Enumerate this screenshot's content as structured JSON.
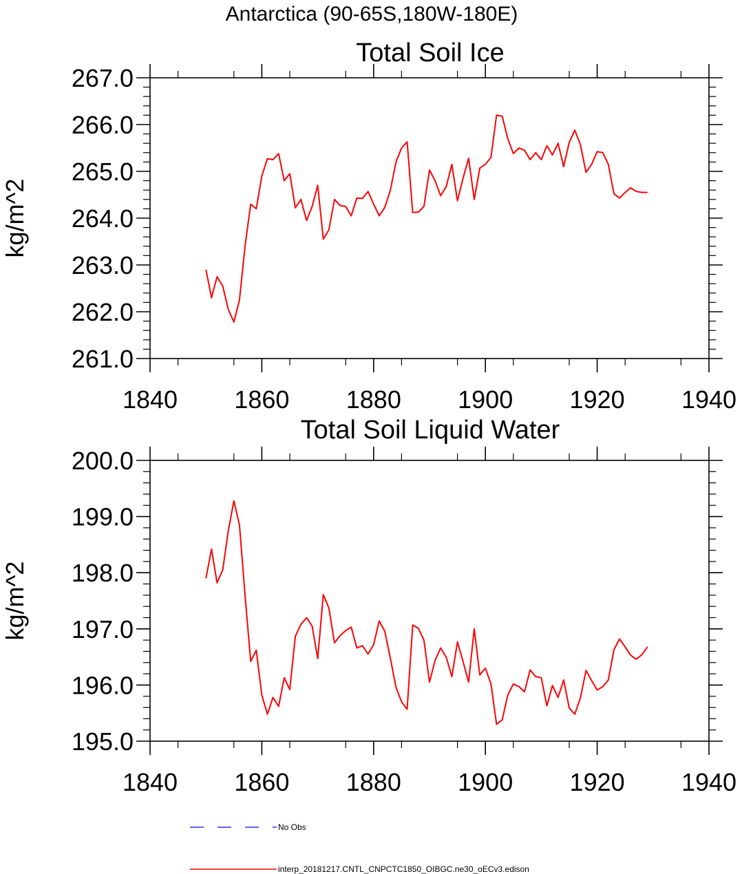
{
  "figure_title": "Antarctica (90-65S,180W-180E)",
  "legend": {
    "entries": [
      {
        "label": "No Obs",
        "color": "#0000ff",
        "style": "dashed"
      },
      {
        "label": "interp_20181217.CNTL_CNPCTC1850_OIBGC.ne30_oECv3.edison",
        "color": "#ff0000",
        "style": "solid"
      }
    ]
  },
  "chart_data": [
    {
      "type": "line",
      "title": "Total Soil Ice",
      "xlabel": "",
      "ylabel": "kg/m^2",
      "xlim": [
        1840,
        1940
      ],
      "ylim": [
        261.0,
        267.0
      ],
      "xticks": [
        "1840",
        "1860",
        "1880",
        "1900",
        "1920",
        "1940"
      ],
      "yticks": [
        "261.0",
        "262.0",
        "263.0",
        "264.0",
        "265.0",
        "266.0",
        "267.0"
      ],
      "grid": false,
      "series": [
        {
          "color": "#ff0000",
          "x": [
            1850,
            1851,
            1852,
            1853,
            1854,
            1855,
            1856,
            1857,
            1858,
            1859,
            1860,
            1861,
            1862,
            1863,
            1864,
            1865,
            1866,
            1867,
            1868,
            1869,
            1870,
            1871,
            1872,
            1873,
            1874,
            1875,
            1876,
            1877,
            1878,
            1879,
            1880,
            1881,
            1882,
            1883,
            1884,
            1885,
            1886,
            1887,
            1888,
            1889,
            1890,
            1891,
            1892,
            1893,
            1894,
            1895,
            1896,
            1897,
            1898,
            1899,
            1900,
            1901,
            1902,
            1903,
            1904,
            1905,
            1906,
            1907,
            1908,
            1909,
            1910,
            1911,
            1912,
            1913,
            1914,
            1915,
            1916,
            1917,
            1918,
            1919,
            1920,
            1921,
            1922,
            1923,
            1924,
            1925,
            1926,
            1927,
            1928,
            1929
          ],
          "values": [
            262.9,
            262.3,
            262.75,
            262.55,
            262.05,
            261.78,
            262.25,
            263.4,
            264.3,
            264.2,
            264.9,
            265.27,
            265.25,
            265.38,
            264.8,
            264.95,
            264.22,
            264.4,
            263.95,
            264.25,
            264.7,
            263.55,
            263.75,
            264.4,
            264.27,
            264.25,
            264.05,
            264.43,
            264.42,
            264.57,
            264.3,
            264.05,
            264.23,
            264.6,
            265.2,
            265.5,
            265.63,
            264.12,
            264.13,
            264.25,
            265.03,
            264.8,
            264.48,
            264.68,
            265.15,
            264.37,
            264.85,
            265.28,
            264.4,
            265.07,
            265.15,
            265.3,
            266.2,
            266.18,
            265.7,
            265.38,
            265.5,
            265.45,
            265.25,
            265.4,
            265.25,
            265.55,
            265.35,
            265.6,
            265.1,
            265.62,
            265.88,
            265.57,
            264.98,
            265.15,
            265.42,
            265.4,
            265.15,
            264.52,
            264.43,
            264.55,
            264.65,
            264.57,
            264.55,
            264.55
          ]
        }
      ]
    },
    {
      "type": "line",
      "title": "Total Soil Liquid Water",
      "xlabel": "",
      "ylabel": "kg/m^2",
      "xlim": [
        1840,
        1940
      ],
      "ylim": [
        195.0,
        200.0
      ],
      "xticks": [
        "1840",
        "1860",
        "1880",
        "1900",
        "1920",
        "1940"
      ],
      "yticks": [
        "195.0",
        "196.0",
        "197.0",
        "198.0",
        "199.0",
        "200.0"
      ],
      "grid": false,
      "series": [
        {
          "color": "#ff0000",
          "x": [
            1850,
            1851,
            1852,
            1853,
            1854,
            1855,
            1856,
            1857,
            1858,
            1859,
            1860,
            1861,
            1862,
            1863,
            1864,
            1865,
            1866,
            1867,
            1868,
            1869,
            1870,
            1871,
            1872,
            1873,
            1874,
            1875,
            1876,
            1877,
            1878,
            1879,
            1880,
            1881,
            1882,
            1883,
            1884,
            1885,
            1886,
            1887,
            1888,
            1889,
            1890,
            1891,
            1892,
            1893,
            1894,
            1895,
            1896,
            1897,
            1898,
            1899,
            1900,
            1901,
            1902,
            1903,
            1904,
            1905,
            1906,
            1907,
            1908,
            1909,
            1910,
            1911,
            1912,
            1913,
            1914,
            1915,
            1916,
            1917,
            1918,
            1919,
            1920,
            1921,
            1922,
            1923,
            1924,
            1925,
            1926,
            1927,
            1928,
            1929
          ],
          "values": [
            197.9,
            198.42,
            197.82,
            198.05,
            198.75,
            199.28,
            198.85,
            197.6,
            196.42,
            196.62,
            195.82,
            195.48,
            195.78,
            195.62,
            196.13,
            195.92,
            196.87,
            197.08,
            197.2,
            197.05,
            196.47,
            197.61,
            197.37,
            196.75,
            196.88,
            196.97,
            197.03,
            196.66,
            196.7,
            196.55,
            196.72,
            197.14,
            196.96,
            196.47,
            195.96,
            195.7,
            195.57,
            197.07,
            197.01,
            196.8,
            196.05,
            196.44,
            196.66,
            196.49,
            196.15,
            196.77,
            196.42,
            196.05,
            197.0,
            196.18,
            196.3,
            196.02,
            195.3,
            195.38,
            195.82,
            196.02,
            195.97,
            195.88,
            196.27,
            196.15,
            196.13,
            195.63,
            195.99,
            195.78,
            196.09,
            195.59,
            195.48,
            195.77,
            196.26,
            196.08,
            195.91,
            195.97,
            196.09,
            196.63,
            196.82,
            196.68,
            196.53,
            196.46,
            196.54,
            196.68
          ]
        }
      ]
    }
  ]
}
